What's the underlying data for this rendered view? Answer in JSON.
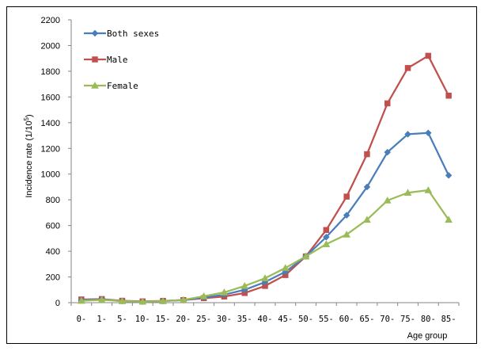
{
  "chart_data": {
    "type": "line",
    "title": "",
    "xlabel": "Age group",
    "ylabel": "Incidence rate (1/10",
    "ylabel_sup": "5",
    "ylabel_tail": ")",
    "ylim": [
      0,
      2200
    ],
    "yticks": [
      0,
      200,
      400,
      600,
      800,
      1000,
      1200,
      1400,
      1600,
      1800,
      2000,
      2200
    ],
    "grid": false,
    "legend_position": "top-left",
    "categories": [
      "0-",
      "1-",
      "5-",
      "10-",
      "15-",
      "20-",
      "25-",
      "30-",
      "35-",
      "40-",
      "45-",
      "50-",
      "55-",
      "60-",
      "65-",
      "70-",
      "75-",
      "80-",
      "85-"
    ],
    "series": [
      {
        "name": "Both sexes",
        "color": "#4a7ebb",
        "marker": "diamond",
        "values": [
          20,
          25,
          12,
          8,
          12,
          20,
          40,
          62,
          100,
          160,
          240,
          360,
          510,
          680,
          900,
          1170,
          1310,
          1320,
          990
        ]
      },
      {
        "name": "Male",
        "color": "#c0504d",
        "marker": "square",
        "values": [
          25,
          28,
          15,
          10,
          14,
          20,
          35,
          48,
          75,
          130,
          215,
          360,
          565,
          825,
          1155,
          1550,
          1825,
          1920,
          1610
        ]
      },
      {
        "name": "Female",
        "color": "#9bbb59",
        "marker": "triangle",
        "values": [
          15,
          22,
          12,
          8,
          12,
          22,
          50,
          80,
          130,
          190,
          270,
          360,
          455,
          530,
          645,
          795,
          855,
          875,
          645
        ]
      }
    ]
  }
}
